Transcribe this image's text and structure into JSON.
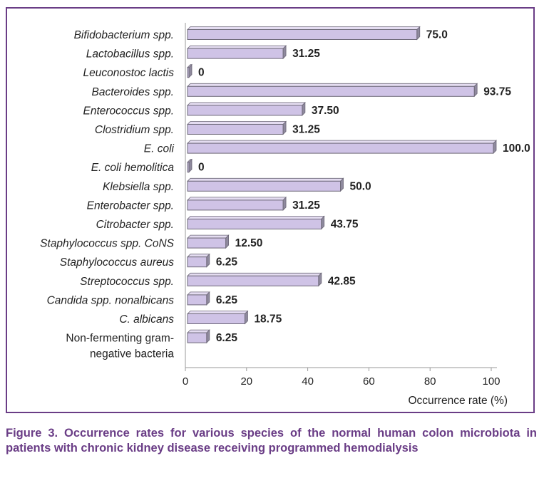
{
  "chart_data": {
    "type": "bar",
    "orientation": "horizontal",
    "categories": [
      "Bifidobacterium spp.",
      "Lactobacillus spp.",
      "Leuconostoc lactis",
      "Bacteroides spp.",
      "Enterococcus spp.",
      "Clostridium spp.",
      "E. coli",
      "E. coli hemolitica",
      "Klebsiella spp.",
      "Enterobacter spp.",
      "Citrobacter spp.",
      "Staphylococcus spp. CoNS",
      "Staphylococcus aureus",
      "Streptococcus spp.",
      "Candida spp. nonalbicans",
      "C. albicans",
      "Non-fermenting gram-negative bacteria"
    ],
    "category_lines": [
      [
        "Bifidobacterium spp."
      ],
      [
        "Lactobacillus spp."
      ],
      [
        "Leuconostoc lactis"
      ],
      [
        "Bacteroides spp."
      ],
      [
        "Enterococcus spp."
      ],
      [
        "Clostridium spp."
      ],
      [
        "E. coli"
      ],
      [
        "E. coli hemolitica"
      ],
      [
        "Klebsiella spp."
      ],
      [
        "Enterobacter spp."
      ],
      [
        "Citrobacter spp."
      ],
      [
        "Staphylococcus spp. CoNS"
      ],
      [
        "Staphylococcus aureus"
      ],
      [
        "Streptococcus spp."
      ],
      [
        "Candida spp. nonalbicans"
      ],
      [
        "C. albicans"
      ],
      [
        "Non-fermenting gram-",
        "negative bacteria"
      ]
    ],
    "values": [
      75.0,
      31.25,
      0,
      93.75,
      37.5,
      31.25,
      100.0,
      0,
      50.0,
      31.25,
      43.75,
      12.5,
      6.25,
      42.85,
      6.25,
      18.75,
      6.25
    ],
    "value_labels": [
      "75.0",
      "31.25",
      "0",
      "93.75",
      "37.50",
      "31.25",
      "100.0",
      "0",
      "50.0",
      "31.25",
      "43.75",
      "12.50",
      "6.25",
      "42.85",
      "6.25",
      "18.75",
      "6.25"
    ],
    "xlim": [
      0,
      100
    ],
    "xticks": [
      "0",
      "20",
      "40",
      "60",
      "80",
      "100"
    ],
    "xlabel": "Occurrence rate (%)",
    "ylabel": "",
    "title": "",
    "grid": false,
    "legend": "none",
    "colors": {
      "bar_fill": "#cfc3e6",
      "bar_top": "#e4dcf1",
      "bar_side": "#8f8a9e",
      "bar_stroke": "#6d6878",
      "axis": "#9a9a9a",
      "frame": "#6a3d86",
      "caption": "#6a3d86"
    }
  },
  "caption": "Figure 3. Occurrence rates for various species of the normal human colon microbiota in patients with chronic kidney disease receiving programmed hemodialysis"
}
